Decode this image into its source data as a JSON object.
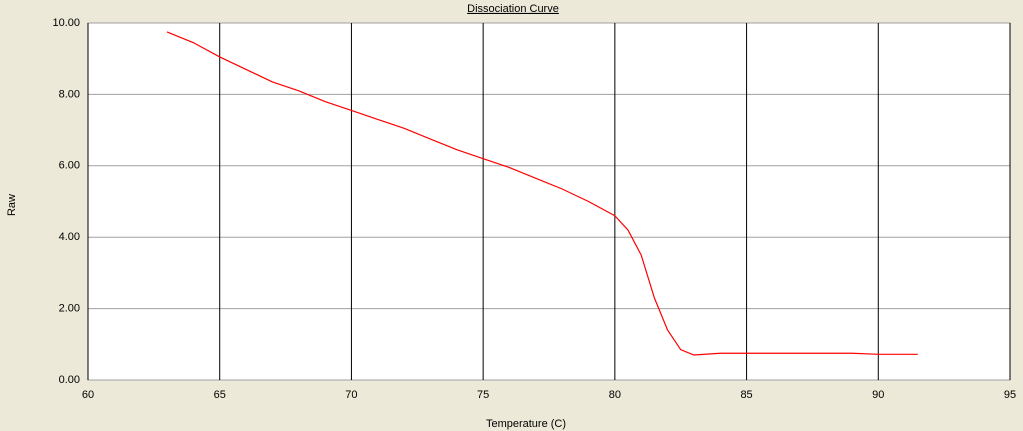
{
  "chart_data": {
    "type": "line",
    "title": "Dissociation Curve",
    "x_label": "Temperature (C)",
    "y_label": "Raw",
    "xlim": [
      60,
      95
    ],
    "xticks": [
      60,
      65,
      70,
      75,
      80,
      85,
      90,
      95
    ],
    "ylim": [
      0,
      10
    ],
    "yticks": [
      {
        "value": 0,
        "label": "0.00"
      },
      {
        "value": 2,
        "label": "2.00"
      },
      {
        "value": 4,
        "label": "4.00"
      },
      {
        "value": 6,
        "label": "6.00"
      },
      {
        "value": 8,
        "label": "8.00"
      },
      {
        "value": 10,
        "label": "10.00"
      }
    ],
    "grid": true,
    "x": [
      63,
      64,
      65,
      66,
      67,
      68,
      69,
      70,
      71,
      72,
      73,
      74,
      75,
      76,
      77,
      78,
      79,
      80,
      80.5,
      81,
      81.5,
      82,
      82.5,
      83,
      84,
      85,
      86,
      87,
      88,
      89,
      90,
      91.5
    ],
    "series": [
      {
        "color": "#ff0000",
        "values": [
          9.75,
          9.45,
          9.05,
          8.7,
          8.35,
          8.1,
          7.8,
          7.55,
          7.3,
          7.05,
          6.75,
          6.45,
          6.2,
          5.95,
          5.65,
          5.35,
          5.0,
          4.6,
          4.2,
          3.5,
          2.3,
          1.4,
          0.85,
          0.7,
          0.75,
          0.75,
          0.75,
          0.75,
          0.75,
          0.75,
          0.72,
          0.72
        ]
      }
    ]
  }
}
